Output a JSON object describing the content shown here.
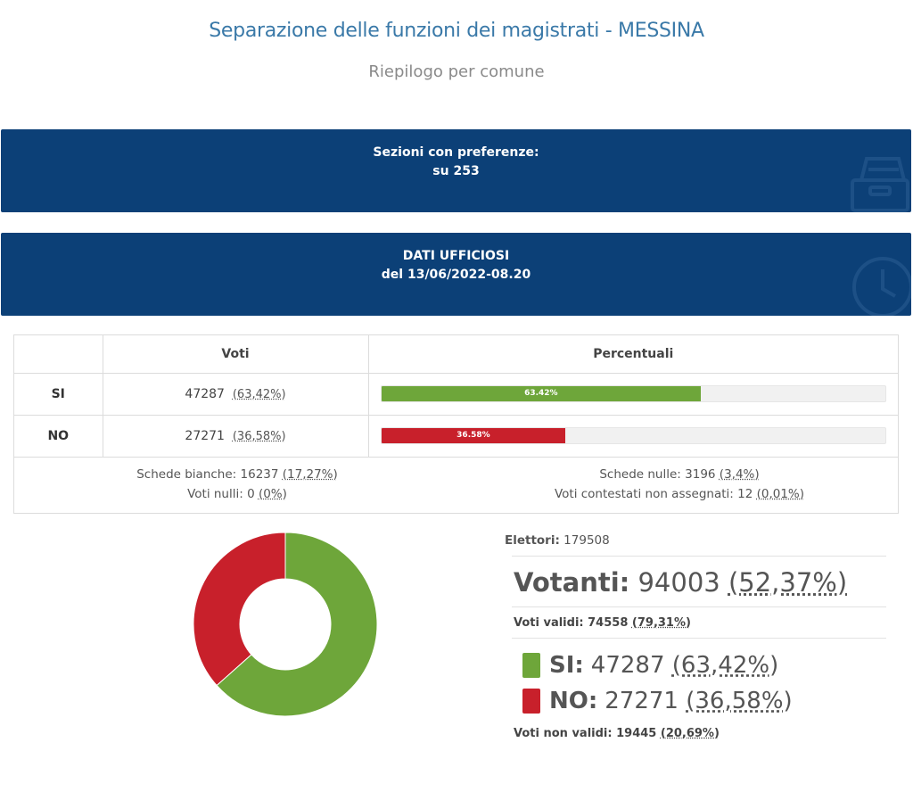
{
  "header": {
    "title": "Separazione delle funzioni dei magistrati - MESSINA",
    "subtitle": "Riepilogo per comune"
  },
  "banners": {
    "sezioni_line1": "Sezioni con preferenze:",
    "sezioni_line2": "su 253",
    "dati_line1": "DATI UFFICIOSI",
    "dati_line2": "del 13/06/2022-08.20",
    "sezioni_icon": "ballot-box-icon",
    "dati_icon": "clock-icon"
  },
  "results_table": {
    "col_voti": "Voti",
    "col_percentuali": "Percentuali",
    "rows": [
      {
        "label": "SI",
        "votes": "47287",
        "pct": "(63,42%)",
        "bar_label": "63.42%",
        "bar_value": 63.42,
        "color": "#6ea63a"
      },
      {
        "label": "NO",
        "votes": "27271",
        "pct": "(36,58%)",
        "bar_label": "36.58%",
        "bar_value": 36.58,
        "color": "#c8202b"
      }
    ],
    "schede_bianche": "Schede bianche: 16237",
    "schede_bianche_pct": "(17,27%)",
    "voti_nulli": "Voti nulli: 0",
    "voti_nulli_pct": "(0%)",
    "schede_nulle": "Schede nulle: 3196",
    "schede_nulle_pct": "(3,4%)",
    "contestati": "Voti contestati non assegnati: 12",
    "contestati_pct": "(0,01%)"
  },
  "chart_data": {
    "type": "pie",
    "categories": [
      "SI",
      "NO"
    ],
    "values": [
      63.42,
      36.58
    ],
    "colors": [
      "#6ea63a",
      "#c8202b"
    ],
    "donut": true
  },
  "stats": {
    "elettori_label": "Elettori:",
    "elettori_value": "179508",
    "votanti_label": "Votanti:",
    "votanti_value": "94003",
    "votanti_pct": "(52,37%)",
    "validi_label": "Voti validi:",
    "validi_value": "74558",
    "validi_pct": "(79,31%)",
    "si_label": "SI:",
    "si_value": "47287",
    "si_pct": "(63,42%)",
    "no_label": "NO:",
    "no_value": "27271",
    "no_pct": "(36,58%)",
    "nonvalidi_label": "Voti non validi:",
    "nonvalidi_value": "19445",
    "nonvalidi_pct": "(20,69%)"
  }
}
